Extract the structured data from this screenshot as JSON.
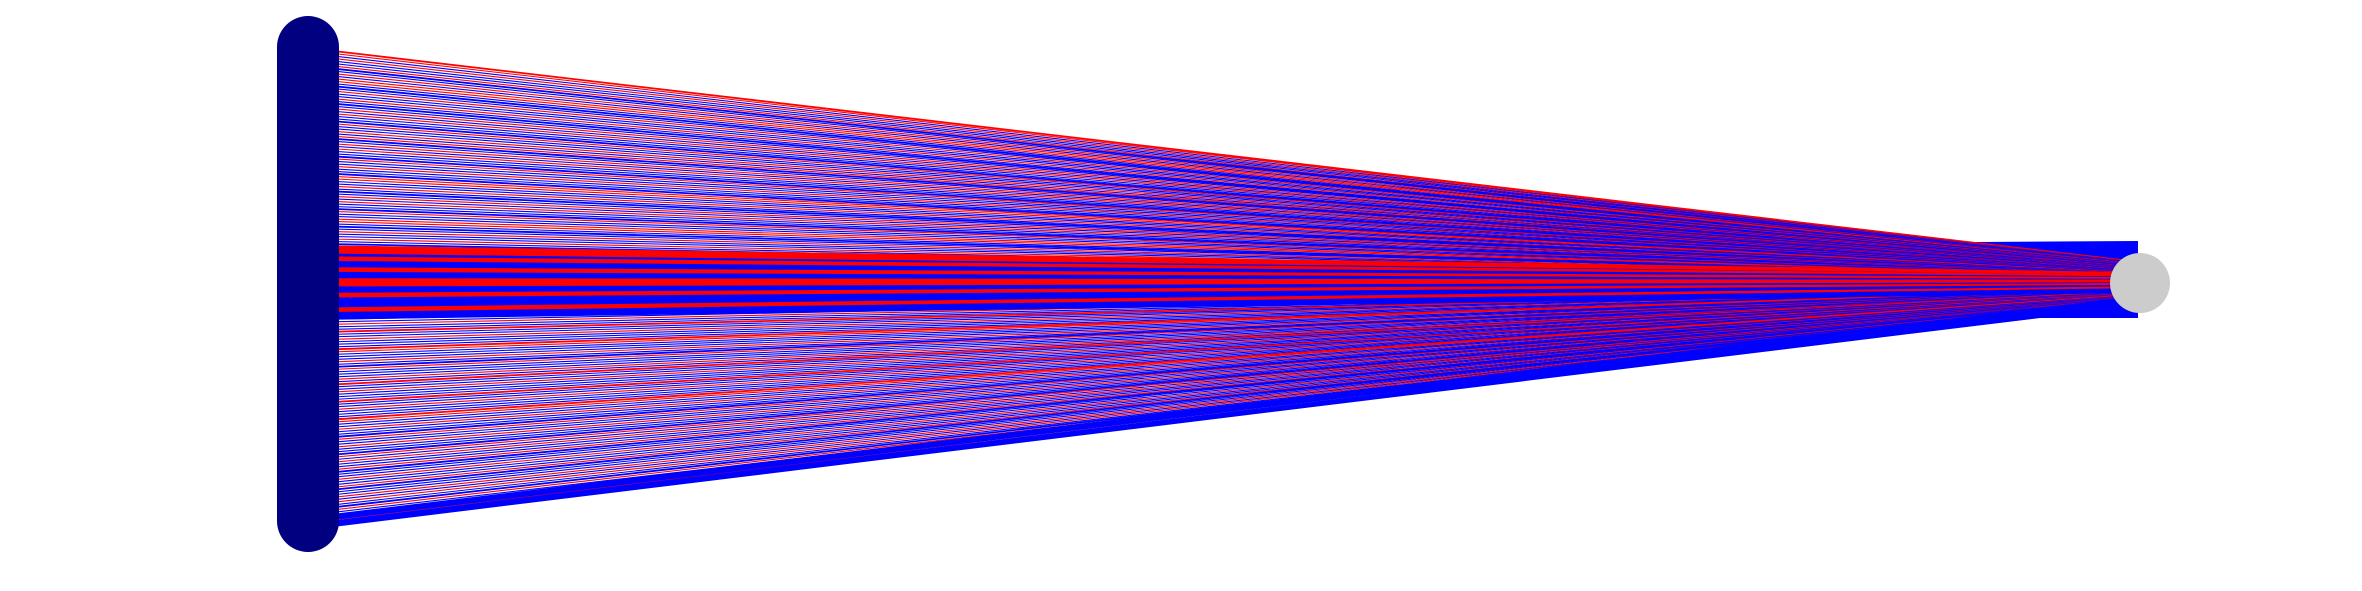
{
  "diagram": {
    "type": "fan-flow",
    "colors": {
      "background": "#ffffff",
      "source_node": "#000080",
      "target_node": "#cccccc",
      "flow_a": "#0000ff",
      "flow_b": "#ff0000"
    },
    "flow_count": 190,
    "flow_color_sequence": [
      "b",
      "b",
      "a",
      "b",
      "a",
      "a",
      "b",
      "a",
      "a",
      "b",
      "a",
      "b",
      "b",
      "a",
      "a",
      "a",
      "b",
      "a",
      "a",
      "b",
      "a",
      "a",
      "a",
      "b",
      "a",
      "b",
      "a",
      "a",
      "a",
      "b",
      "a",
      "a",
      "b",
      "a",
      "b",
      "a",
      "a",
      "b",
      "a",
      "b",
      "a",
      "a",
      "a",
      "b",
      "a",
      "a",
      "b",
      "a",
      "a",
      "a",
      "b",
      "b",
      "a",
      "a",
      "b",
      "a",
      "a",
      "a",
      "b",
      "a",
      "b",
      "a",
      "a",
      "a",
      "b",
      "a",
      "a",
      "b",
      "b",
      "a",
      "a",
      "a",
      "b",
      "a",
      "a",
      "b",
      "a",
      "a",
      "a",
      "b",
      "a",
      "b",
      "a",
      "a",
      "b",
      "a",
      "a",
      "a",
      "b",
      "a",
      "a",
      "b",
      "a",
      "a",
      "a",
      "b",
      "b",
      "a",
      "a",
      "b",
      "a",
      "a",
      "a",
      "b",
      "a",
      "b",
      "a",
      "a",
      "a",
      "b",
      "a",
      "a",
      "b",
      "a",
      "a",
      "b",
      "a",
      "a",
      "a",
      "b",
      "b",
      "a",
      "a",
      "a",
      "b",
      "a",
      "a",
      "b",
      "a",
      "a",
      "a",
      "b",
      "a",
      "b",
      "a",
      "a",
      "b",
      "a",
      "a",
      "a",
      "b",
      "a",
      "a",
      "b",
      "a",
      "a",
      "a",
      "b",
      "b",
      "a",
      "a",
      "b",
      "a",
      "a",
      "a",
      "b",
      "a",
      "a",
      "b",
      "a",
      "a",
      "a",
      "b",
      "a",
      "b",
      "a",
      "a",
      "b",
      "a",
      "a",
      "a",
      "b",
      "a",
      "a",
      "b",
      "a",
      "a",
      "a",
      "b",
      "a",
      "b",
      "a",
      "a",
      "b",
      "a",
      "a",
      "a",
      "b",
      "a",
      "a"
    ],
    "heavy_band_sequence": [
      "b",
      "b",
      "a",
      "b",
      "a",
      "a",
      "b",
      "a",
      "a",
      "b",
      "b",
      "a",
      "a",
      "b",
      "a",
      "a",
      "a",
      "b",
      "a",
      "a"
    ]
  }
}
